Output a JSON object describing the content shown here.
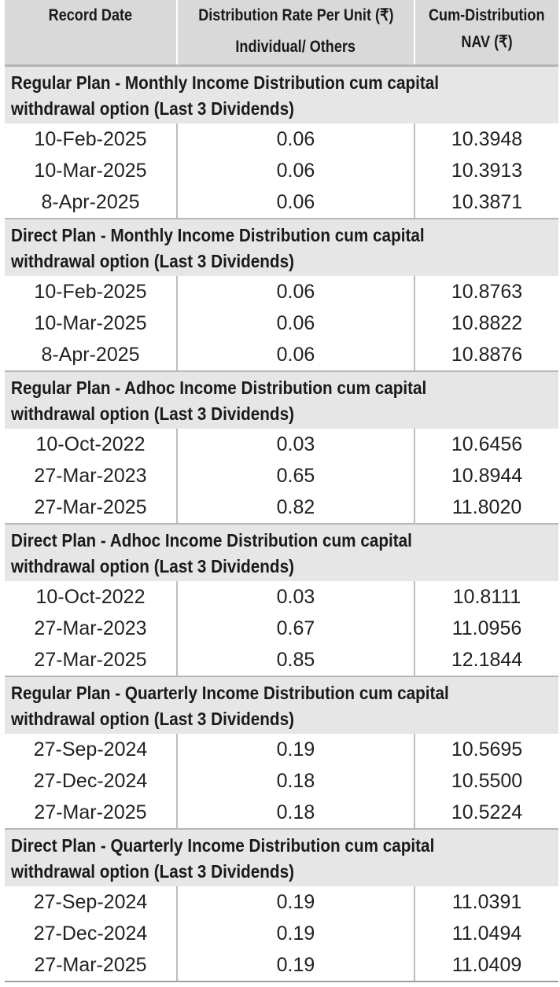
{
  "header": {
    "record_date": "Record Date",
    "rate_line1": "Distribution Rate Per Unit (₹)",
    "rate_line2": "Individual/ Others",
    "nav_line1": "Cum-Distribution",
    "nav_line2": "NAV (₹)"
  },
  "sections": [
    {
      "title_line1": "Regular Plan - Monthly Income Distribution cum capital",
      "title_line2": "withdrawal option (Last 3 Dividends)",
      "rows": [
        {
          "date": "10-Feb-2025",
          "rate": "0.06",
          "nav": "10.3948"
        },
        {
          "date": "10-Mar-2025",
          "rate": "0.06",
          "nav": "10.3913"
        },
        {
          "date": "8-Apr-2025",
          "rate": "0.06",
          "nav": "10.3871"
        }
      ]
    },
    {
      "title_line1": "Direct Plan - Monthly Income Distribution cum capital",
      "title_line2": "withdrawal option (Last 3 Dividends)",
      "rows": [
        {
          "date": "10-Feb-2025",
          "rate": "0.06",
          "nav": "10.8763"
        },
        {
          "date": "10-Mar-2025",
          "rate": "0.06",
          "nav": "10.8822"
        },
        {
          "date": "8-Apr-2025",
          "rate": "0.06",
          "nav": "10.8876"
        }
      ]
    },
    {
      "title_line1": "Regular Plan - Adhoc Income Distribution cum capital",
      "title_line2": "withdrawal option (Last 3 Dividends)",
      "rows": [
        {
          "date": "10-Oct-2022",
          "rate": "0.03",
          "nav": "10.6456"
        },
        {
          "date": "27-Mar-2023",
          "rate": "0.65",
          "nav": "10.8944"
        },
        {
          "date": "27-Mar-2025",
          "rate": "0.82",
          "nav": "11.8020"
        }
      ]
    },
    {
      "title_line1": "Direct Plan - Adhoc Income Distribution cum capital",
      "title_line2": "withdrawal option (Last 3 Dividends)",
      "rows": [
        {
          "date": "10-Oct-2022",
          "rate": "0.03",
          "nav": "10.8111"
        },
        {
          "date": "27-Mar-2023",
          "rate": "0.67",
          "nav": "11.0956"
        },
        {
          "date": "27-Mar-2025",
          "rate": "0.85",
          "nav": "12.1844"
        }
      ]
    },
    {
      "title_line1": "Regular Plan - Quarterly Income Distribution cum capital",
      "title_line2": "withdrawal option (Last 3 Dividends)",
      "rows": [
        {
          "date": "27-Sep-2024",
          "rate": "0.19",
          "nav": "10.5695"
        },
        {
          "date": "27-Dec-2024",
          "rate": "0.18",
          "nav": "10.5500"
        },
        {
          "date": "27-Mar-2025",
          "rate": "0.18",
          "nav": "10.5224"
        }
      ]
    },
    {
      "title_line1": "Direct Plan - Quarterly Income Distribution cum capital",
      "title_line2": "withdrawal option (Last 3 Dividends)",
      "rows": [
        {
          "date": "27-Sep-2024",
          "rate": "0.19",
          "nav": "11.0391"
        },
        {
          "date": "27-Dec-2024",
          "rate": "0.19",
          "nav": "11.0494"
        },
        {
          "date": "27-Mar-2025",
          "rate": "0.19",
          "nav": "11.0409"
        }
      ]
    }
  ]
}
